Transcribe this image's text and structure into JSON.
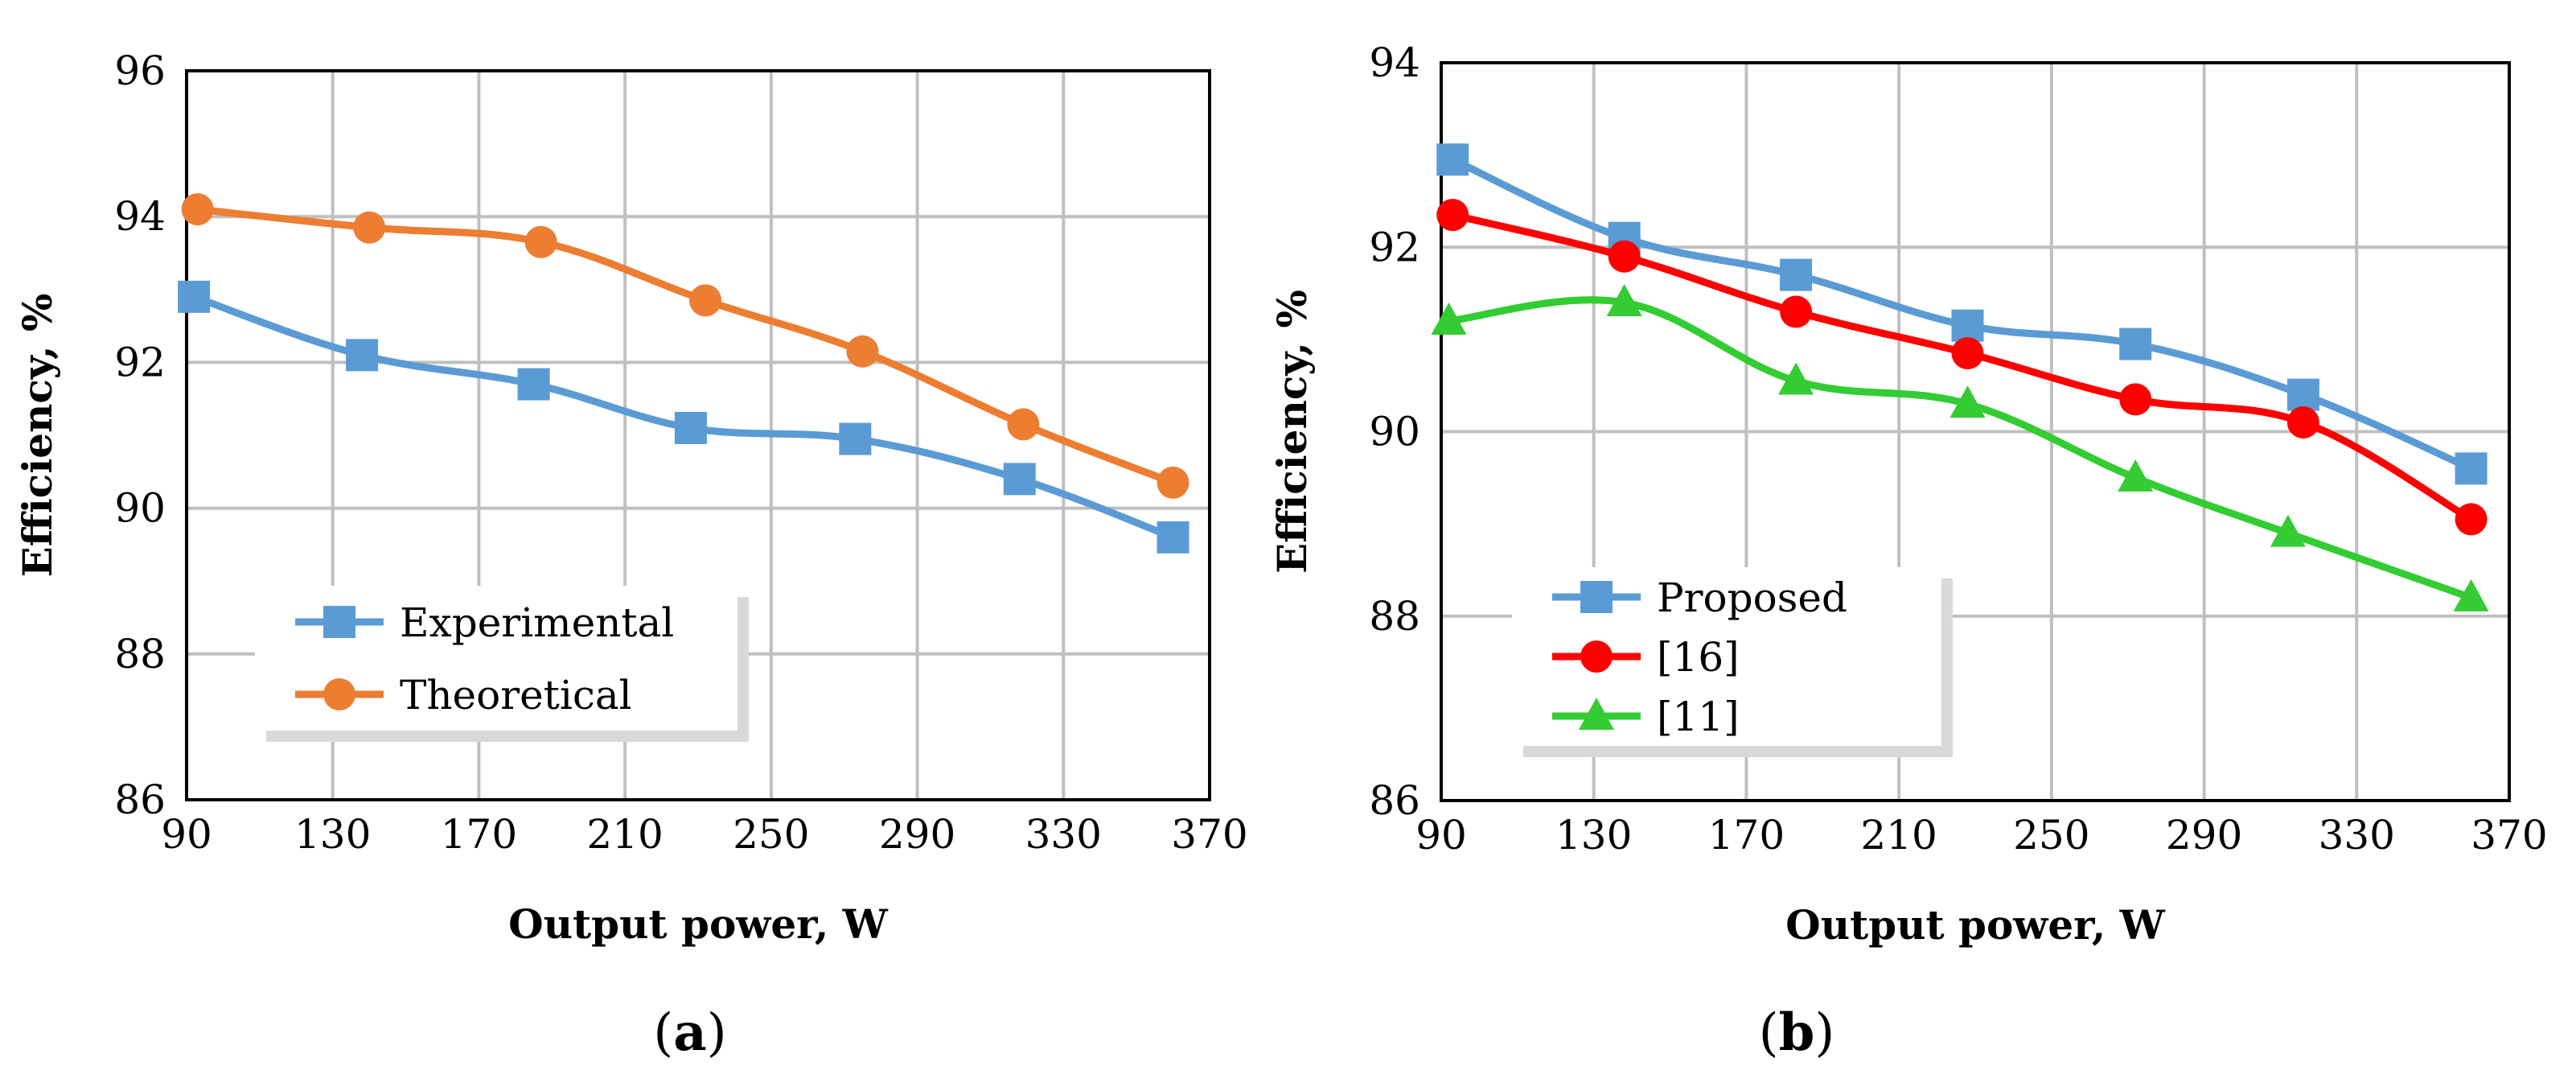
{
  "chart_data": [
    {
      "type": "line",
      "panel_label": "a",
      "xlabel": "Output power, W",
      "ylabel": "Efficiency, %",
      "xlim": [
        90,
        370
      ],
      "ylim": [
        86,
        96
      ],
      "xticks": [
        90,
        130,
        170,
        210,
        250,
        290,
        330,
        370
      ],
      "yticks": [
        86,
        88,
        90,
        92,
        94,
        96
      ],
      "grid": true,
      "legend_position": "bottom-left",
      "series": [
        {
          "name": "Experimental",
          "color": "#5b9bd5",
          "marker": "square",
          "x": [
            92,
            138,
            185,
            228,
            273,
            318,
            360
          ],
          "y": [
            92.9,
            92.1,
            91.7,
            91.1,
            90.95,
            90.4,
            89.6
          ]
        },
        {
          "name": "Theoretical",
          "color": "#ed7d31",
          "marker": "circle",
          "x": [
            93,
            140,
            187,
            232,
            275,
            319,
            360
          ],
          "y": [
            94.1,
            93.85,
            93.65,
            92.85,
            92.15,
            91.15,
            90.35
          ]
        }
      ]
    },
    {
      "type": "line",
      "panel_label": "b",
      "xlabel": "Output power, W",
      "ylabel": "Efficiency, %",
      "xlim": [
        90,
        370
      ],
      "ylim": [
        86,
        94
      ],
      "xticks": [
        90,
        130,
        170,
        210,
        250,
        290,
        330,
        370
      ],
      "yticks": [
        86,
        88,
        90,
        92,
        94
      ],
      "grid": true,
      "legend_position": "bottom-left",
      "series": [
        {
          "name": "Proposed",
          "color": "#5b9bd5",
          "marker": "square",
          "x": [
            93,
            138,
            183,
            228,
            272,
            316,
            360
          ],
          "y": [
            92.95,
            92.1,
            91.7,
            91.15,
            90.95,
            90.4,
            89.6
          ]
        },
        {
          "name": "[16]",
          "color": "#ff0000",
          "marker": "circle",
          "x": [
            93,
            138,
            183,
            228,
            272,
            316,
            360
          ],
          "y": [
            92.35,
            91.9,
            91.3,
            90.85,
            90.35,
            90.1,
            89.05
          ]
        },
        {
          "name": "[11]",
          "color": "#33cc33",
          "marker": "triangle",
          "x": [
            92,
            138,
            183,
            228,
            272,
            312,
            360
          ],
          "y": [
            91.2,
            91.4,
            90.55,
            90.3,
            89.5,
            88.9,
            88.2
          ]
        }
      ]
    }
  ]
}
